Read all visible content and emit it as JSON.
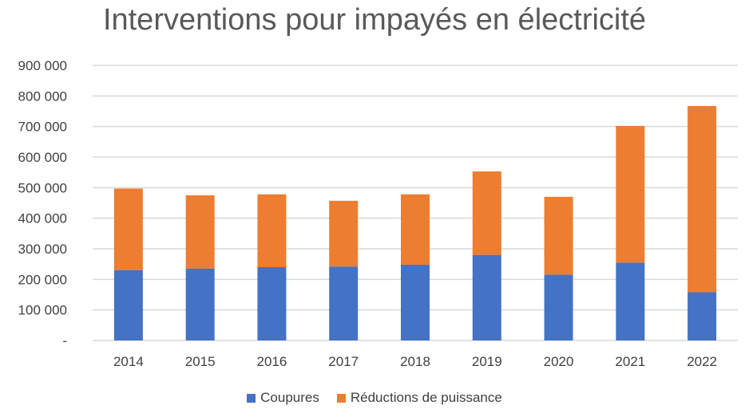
{
  "chart_data": {
    "type": "bar",
    "stacked": true,
    "title": "Interventions pour impayés en électricité",
    "categories": [
      "2014",
      "2015",
      "2016",
      "2017",
      "2018",
      "2019",
      "2020",
      "2021",
      "2022"
    ],
    "series": [
      {
        "name": "Coupures",
        "color": "#4472C4",
        "values": [
          230000,
          235000,
          240000,
          242000,
          248000,
          280000,
          215000,
          255000,
          158000
        ]
      },
      {
        "name": "Réductions de puissance",
        "color": "#ED7D31",
        "values": [
          267000,
          240000,
          238000,
          215000,
          230000,
          273000,
          255000,
          447000,
          609000
        ]
      }
    ],
    "ylim": [
      0,
      900000
    ],
    "yticks": [
      0,
      100000,
      200000,
      300000,
      400000,
      500000,
      600000,
      700000,
      800000,
      900000
    ],
    "ytick_labels": [
      "-",
      "100 000",
      "200 000",
      "300 000",
      "400 000",
      "500 000",
      "600 000",
      "700 000",
      "800 000",
      "900 000"
    ],
    "grid": true,
    "legend_position": "bottom",
    "xlabel": "",
    "ylabel": ""
  }
}
